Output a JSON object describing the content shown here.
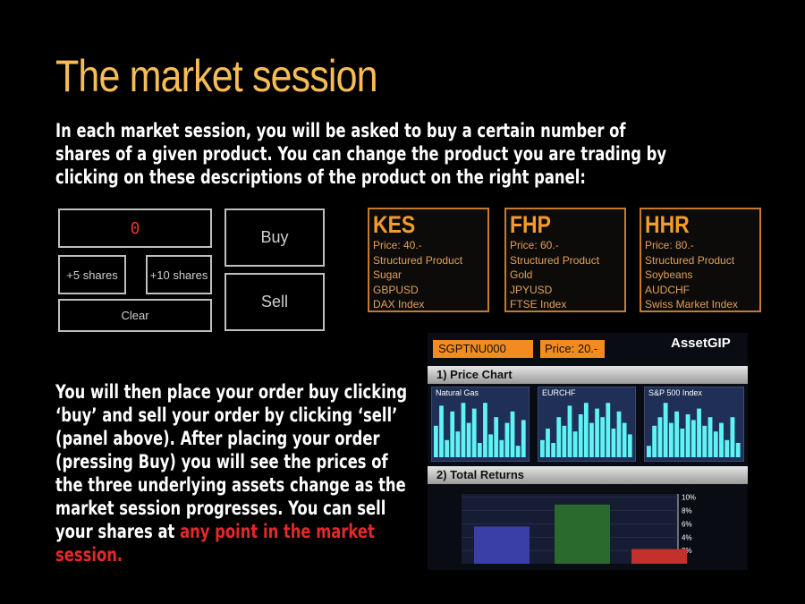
{
  "title": "The market session",
  "intro": "In each market session, you will be asked to buy a certain number of shares of a given product. You can change the product you are trading by clicking on these descriptions of the product on the right panel:",
  "outro_main": "You will then place your order buy clicking ‘buy’ and sell your order by clicking ‘sell’ (panel above). After placing your order (pressing Buy) you will see the prices of the three underlying assets change as the market session progresses. You can sell your shares at ",
  "outro_highlight": "any point in the market session.",
  "order_panel": {
    "quantity": "0",
    "plus5": "+5 shares",
    "plus10": "+10 shares",
    "clear": "Clear",
    "buy": "Buy",
    "sell": "Sell"
  },
  "products": [
    {
      "code": "KES",
      "price": "Price: 40.-",
      "type": "Structured Product",
      "asset1": "Sugar",
      "asset2": "GBPUSD",
      "asset3": "DAX Index"
    },
    {
      "code": "FHP",
      "price": "Price: 60.-",
      "type": "Structured Product",
      "asset1": "Gold",
      "asset2": "JPYUSD",
      "asset3": "FTSE Index"
    },
    {
      "code": "HHR",
      "price": "Price: 80.-",
      "type": "Structured Product",
      "asset1": "Soybeans",
      "asset2": "AUDCHF",
      "asset3": "Swiss Market Index"
    }
  ],
  "asset_panel": {
    "code": "SGPTNU000",
    "price": "Price: 20.-",
    "brand": "AssetGIP",
    "section1": "1) Price Chart",
    "section2": "2) Total Returns",
    "mini_charts": [
      {
        "label": "Natural Gas",
        "values": [
          0.55,
          0.9,
          0.3,
          0.8,
          0.45,
          0.95,
          0.6,
          0.85,
          0.25,
          0.95,
          0.4,
          0.7,
          0.3,
          0.6,
          0.8,
          0.2,
          0.65
        ]
      },
      {
        "label": "EURCHF",
        "values": [
          0.3,
          0.5,
          0.25,
          0.7,
          0.55,
          0.9,
          0.45,
          0.75,
          0.95,
          0.6,
          0.85,
          0.7,
          0.95,
          0.5,
          0.8,
          0.6,
          0.4
        ]
      },
      {
        "label": "S&P 500 Index",
        "values": [
          0.2,
          0.55,
          0.7,
          0.95,
          0.6,
          0.8,
          0.5,
          0.75,
          0.65,
          0.85,
          0.55,
          0.7,
          0.45,
          0.6,
          0.3,
          0.7,
          0.25
        ]
      }
    ],
    "returns_ticks": [
      "10%",
      "8%",
      "6%",
      "4%",
      "2%"
    ],
    "returns_bars": [
      {
        "value": 5.6,
        "color": "#3a3fa8"
      },
      {
        "value": 8.9,
        "color": "#2a6b2d"
      },
      {
        "value": 2.2,
        "color": "#c4302b"
      }
    ],
    "returns_max": 10.5
  }
}
